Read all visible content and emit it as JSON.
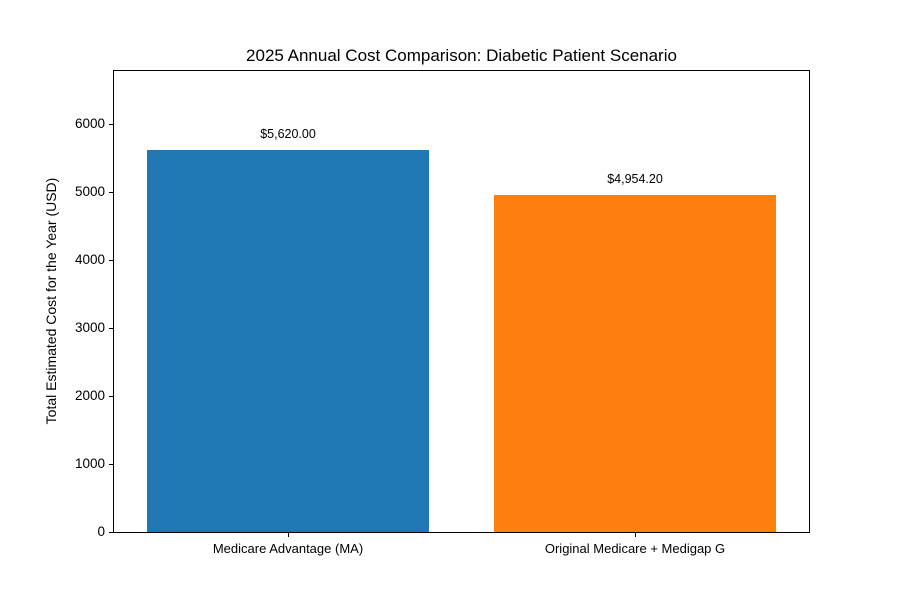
{
  "chart_data": {
    "type": "bar",
    "title": "2025 Annual Cost Comparison: Diabetic Patient Scenario",
    "xlabel": "",
    "ylabel": "Total Estimated Cost for the Year (USD)",
    "categories": [
      "Medicare Advantage (MA)",
      "Original Medicare + Medigap G"
    ],
    "values": [
      5620.0,
      4954.2
    ],
    "value_labels": [
      "$5,620.00",
      "$4,954.20"
    ],
    "bar_colors": [
      "#1f77b4",
      "#ff7f0e"
    ],
    "yticks": [
      0,
      1000,
      2000,
      3000,
      4000,
      5000,
      6000
    ],
    "ytick_labels": [
      "0",
      "1000",
      "2000",
      "3000",
      "4000",
      "5000",
      "6000"
    ],
    "ylim": [
      0,
      6776
    ],
    "grid": false,
    "legend_position": "none",
    "background_color": "#ffffff",
    "text_color": "#000000"
  }
}
